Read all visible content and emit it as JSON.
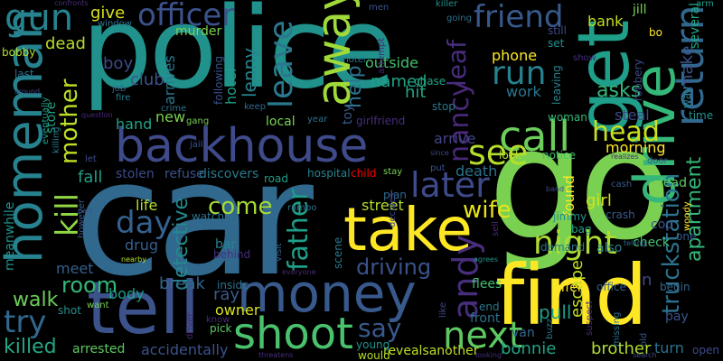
{
  "colors": {
    "background": "#000000"
  },
  "words": [
    {
      "text": "car",
      "color": "#31688e"
    },
    {
      "text": "police",
      "color": "#21918c"
    },
    {
      "text": "go",
      "color": "#7ad151"
    },
    {
      "text": "find",
      "color": "#fde725"
    },
    {
      "text": "backhouse",
      "color": "#3e4a89"
    },
    {
      "text": "tell",
      "color": "#3b528b"
    },
    {
      "text": "money",
      "color": "#38598c"
    },
    {
      "text": "take",
      "color": "#fde725"
    },
    {
      "text": "homeman",
      "color": "#26828e"
    },
    {
      "text": "get",
      "color": "#1f9e89"
    },
    {
      "text": "drive",
      "color": "#35b779"
    },
    {
      "text": "shoot",
      "color": "#4ac16d"
    },
    {
      "text": "away",
      "color": "#a0da39"
    },
    {
      "text": "call",
      "color": "#6ccd5a"
    },
    {
      "text": "gun",
      "color": "#26828e"
    },
    {
      "text": "officer",
      "color": "#3b528b"
    },
    {
      "text": "friend",
      "color": "#38598c"
    },
    {
      "text": "return",
      "color": "#31688e"
    },
    {
      "text": "truckstation",
      "color": "#2c728e"
    },
    {
      "text": "apartment",
      "color": "#35b779"
    },
    {
      "text": "night",
      "color": "#addc30"
    },
    {
      "text": "next",
      "color": "#5ec962"
    },
    {
      "text": "andy",
      "color": "#472d7b"
    },
    {
      "text": "see",
      "color": "#b5de2b"
    },
    {
      "text": "head",
      "color": "#c8e020"
    },
    {
      "text": "later",
      "color": "#3e4a89"
    },
    {
      "text": "leave",
      "color": "#2a788e"
    },
    {
      "text": "kill",
      "color": "#8fd744"
    },
    {
      "text": "father",
      "color": "#1f9e89"
    },
    {
      "text": "mother",
      "color": "#bddf26"
    },
    {
      "text": "run",
      "color": "#26828e"
    },
    {
      "text": "day",
      "color": "#35608d"
    },
    {
      "text": "come",
      "color": "#a5db36"
    },
    {
      "text": "wife",
      "color": "#e5e419"
    },
    {
      "text": "try",
      "color": "#31688e"
    },
    {
      "text": "say",
      "color": "#38598c"
    },
    {
      "text": "nancy",
      "color": "#482878"
    },
    {
      "text": "room",
      "color": "#35b779"
    },
    {
      "text": "walk",
      "color": "#6ccd5a"
    },
    {
      "text": "driving",
      "color": "#3b528b"
    },
    {
      "text": "detective",
      "color": "#238a8d"
    },
    {
      "text": "leaf",
      "color": "#472d7b"
    },
    {
      "text": "help",
      "color": "#2c728e"
    },
    {
      "text": "asks",
      "color": "#35b779"
    },
    {
      "text": "phone",
      "color": "#fde725"
    },
    {
      "text": "pull",
      "color": "#1f9e89"
    },
    {
      "text": "escape",
      "color": "#c2df23"
    },
    {
      "text": "bonnie",
      "color": "#20a386"
    },
    {
      "text": "brother",
      "color": "#addc30"
    },
    {
      "text": "killed",
      "color": "#22a785"
    },
    {
      "text": "dead",
      "color": "#b5de2b"
    },
    {
      "text": "give",
      "color": "#d8e219"
    },
    {
      "text": "boy",
      "color": "#3e4a89"
    },
    {
      "text": "meanwhile",
      "color": "#21918c"
    },
    {
      "text": "lenny",
      "color": "#26828e"
    },
    {
      "text": "hotel",
      "color": "#1f9e89"
    },
    {
      "text": "club",
      "color": "#3b528b"
    },
    {
      "text": "named",
      "color": "#20a386"
    },
    {
      "text": "hit",
      "color": "#22a785"
    },
    {
      "text": "work",
      "color": "#2a788e"
    },
    {
      "text": "arrive",
      "color": "#414487"
    },
    {
      "text": "death",
      "color": "#2c728e"
    },
    {
      "text": "street",
      "color": "#b5de2b"
    },
    {
      "text": "girl",
      "color": "#d2e21b"
    },
    {
      "text": "morning",
      "color": "#fde725"
    },
    {
      "text": "steal",
      "color": "#3e4a89"
    },
    {
      "text": "make",
      "color": "#3b528b"
    },
    {
      "text": "body",
      "color": "#1f9e89"
    },
    {
      "text": "break",
      "color": "#31688e"
    },
    {
      "text": "ray",
      "color": "#38598c"
    },
    {
      "text": "owner",
      "color": "#d8e219"
    },
    {
      "text": "turn",
      "color": "#2c728e"
    },
    {
      "text": "life",
      "color": "#b5de2b"
    },
    {
      "text": "new",
      "color": "#7ad151"
    },
    {
      "text": "hand",
      "color": "#20a386"
    },
    {
      "text": "fall",
      "color": "#1f9e89"
    },
    {
      "text": "meet",
      "color": "#35608d"
    },
    {
      "text": "drug",
      "color": "#35608d"
    },
    {
      "text": "arrives",
      "color": "#2a788e"
    },
    {
      "text": "outside",
      "color": "#44bf70"
    },
    {
      "text": "bank",
      "color": "#c2df23"
    },
    {
      "text": "jill",
      "color": "#7ad151"
    },
    {
      "text": "several",
      "color": "#22a785"
    },
    {
      "text": "found",
      "color": "#fde725"
    },
    {
      "text": "n",
      "color": "#3e4a89"
    },
    {
      "text": "lead",
      "color": "#5ec962"
    },
    {
      "text": "arrested",
      "color": "#5ec962"
    },
    {
      "text": "accidentally",
      "color": "#3b528b"
    },
    {
      "text": "revealsanother",
      "color": "#bddf26"
    },
    {
      "text": "front",
      "color": "#2c728e"
    },
    {
      "text": "van",
      "color": "#31688e"
    },
    {
      "text": "offer",
      "color": "#fde725"
    },
    {
      "text": "store",
      "color": "#20a386"
    },
    {
      "text": "murder",
      "color": "#7ad151"
    },
    {
      "text": "hospital",
      "color": "#26828e"
    },
    {
      "text": "child",
      "color": "#ff0000"
    },
    {
      "text": "local",
      "color": "#7ad151"
    },
    {
      "text": "bobby",
      "color": "#b5de2b"
    },
    {
      "text": "last",
      "color": "#2c728e"
    },
    {
      "text": "still",
      "color": "#3e4a89"
    },
    {
      "text": "set",
      "color": "#21918c"
    },
    {
      "text": "chase",
      "color": "#20a386"
    },
    {
      "text": "stop",
      "color": "#2a788e"
    },
    {
      "text": "toy",
      "color": "#38598c"
    },
    {
      "text": "woman",
      "color": "#35b779"
    },
    {
      "text": "look",
      "color": "#b5de2b"
    },
    {
      "text": "notice",
      "color": "#44bf70"
    },
    {
      "text": "stolen",
      "color": "#3e4a89"
    },
    {
      "text": "refuse",
      "color": "#3b528b"
    },
    {
      "text": "discovers",
      "color": "#2a788e"
    },
    {
      "text": "road",
      "color": "#1f9e89"
    },
    {
      "text": "watch",
      "color": "#2c728e"
    },
    {
      "text": "plan",
      "color": "#31688e"
    },
    {
      "text": "jimmy",
      "color": "#21918c"
    },
    {
      "text": "crash",
      "color": "#38598c"
    },
    {
      "text": "cop",
      "color": "#3b528b"
    },
    {
      "text": "check",
      "color": "#44bf70"
    },
    {
      "text": "also",
      "color": "#26828e"
    },
    {
      "text": "demand",
      "color": "#2a788e"
    },
    {
      "text": "bag",
      "color": "#20a386"
    },
    {
      "text": "bar",
      "color": "#26828e"
    },
    {
      "text": "behind",
      "color": "#472d7b"
    },
    {
      "text": "inside",
      "color": "#2c728e"
    },
    {
      "text": "pick",
      "color": "#5ec962"
    },
    {
      "text": "flees",
      "color": "#44bf70"
    },
    {
      "text": "end",
      "color": "#2a788e"
    },
    {
      "text": "young",
      "color": "#21918c"
    },
    {
      "text": "would",
      "color": "#b5de2b"
    },
    {
      "text": "pay",
      "color": "#3b528b"
    },
    {
      "text": "office",
      "color": "#35608d"
    },
    {
      "text": "begin",
      "color": "#31688e"
    },
    {
      "text": "one",
      "color": "#38598c"
    },
    {
      "text": "way",
      "color": "#26828e"
    },
    {
      "text": "time",
      "color": "#21918c"
    },
    {
      "text": "open",
      "color": "#3e4a89"
    },
    {
      "text": "window",
      "color": "#2a788e"
    },
    {
      "text": "men",
      "color": "#3b528b"
    },
    {
      "text": "killer",
      "color": "#21918c"
    },
    {
      "text": "going",
      "color": "#2c728e"
    },
    {
      "text": "arm",
      "color": "#1f9e89"
    },
    {
      "text": "bo",
      "color": "#fde725"
    },
    {
      "text": "robbery",
      "color": "#3e4a89"
    },
    {
      "text": "leaving",
      "color": "#26828e"
    },
    {
      "text": "show",
      "color": "#472d7b"
    },
    {
      "text": "cash",
      "color": "#38598c"
    },
    {
      "text": "motel",
      "color": "#2a788e"
    },
    {
      "text": "following",
      "color": "#3b528b"
    },
    {
      "text": "attempt",
      "color": "#482878"
    },
    {
      "text": "keep",
      "color": "#31688e"
    },
    {
      "text": "gang",
      "color": "#7ad151"
    },
    {
      "text": "crime",
      "color": "#2c728e"
    },
    {
      "text": "fire",
      "color": "#26828e"
    },
    {
      "text": "job",
      "color": "#35608d"
    },
    {
      "text": "eventually",
      "color": "#1f9e89"
    },
    {
      "text": "killing",
      "color": "#2a788e"
    },
    {
      "text": "question",
      "color": "#482878"
    },
    {
      "text": "jail",
      "color": "#3b528b"
    },
    {
      "text": "year",
      "color": "#2c728e"
    },
    {
      "text": "girlfriend",
      "color": "#472d7b"
    },
    {
      "text": "want",
      "color": "#7ad151"
    },
    {
      "text": "shot",
      "color": "#21918c"
    },
    {
      "text": "know",
      "color": "#482878"
    },
    {
      "text": "driver",
      "color": "#482878"
    },
    {
      "text": "let",
      "color": "#3e4a89"
    },
    {
      "text": "rambo",
      "color": "#2c728e"
    },
    {
      "text": "visit",
      "color": "#35608d"
    },
    {
      "text": "everyone",
      "color": "#482878"
    },
    {
      "text": "scene",
      "color": "#2a788e"
    },
    {
      "text": "decides",
      "color": "#3e4a89"
    },
    {
      "text": "stay",
      "color": "#7ad151"
    },
    {
      "text": "put",
      "color": "#3b528b"
    },
    {
      "text": "agrees",
      "color": "#21918c"
    },
    {
      "text": "like",
      "color": "#3e4a89"
    },
    {
      "text": "sell",
      "color": "#482878"
    },
    {
      "text": "door",
      "color": "#3b528b"
    },
    {
      "text": "telling",
      "color": "#31688e"
    },
    {
      "text": "woody",
      "color": "#fde725"
    },
    {
      "text": "missing",
      "color": "#2c728e"
    },
    {
      "text": "old",
      "color": "#38598c"
    },
    {
      "text": "search",
      "color": "#3e4a89"
    },
    {
      "text": "suspect",
      "color": "#472d7b"
    },
    {
      "text": "realizes",
      "color": "#482878"
    },
    {
      "text": "nearby",
      "color": "#b5de2b"
    },
    {
      "text": "around",
      "color": "#3e4a89"
    },
    {
      "text": "however",
      "color": "#38598c"
    },
    {
      "text": "threatens",
      "color": "#472d7b"
    },
    {
      "text": "looking",
      "color": "#472d7b"
    },
    {
      "text": "confronts",
      "color": "#472d7b"
    },
    {
      "text": "since",
      "color": "#3e4a89"
    },
    {
      "text": "part",
      "color": "#3b528b"
    },
    {
      "text": "band",
      "color": "#3e4a89"
    },
    {
      "text": "buzz",
      "color": "#2a788e"
    }
  ]
}
